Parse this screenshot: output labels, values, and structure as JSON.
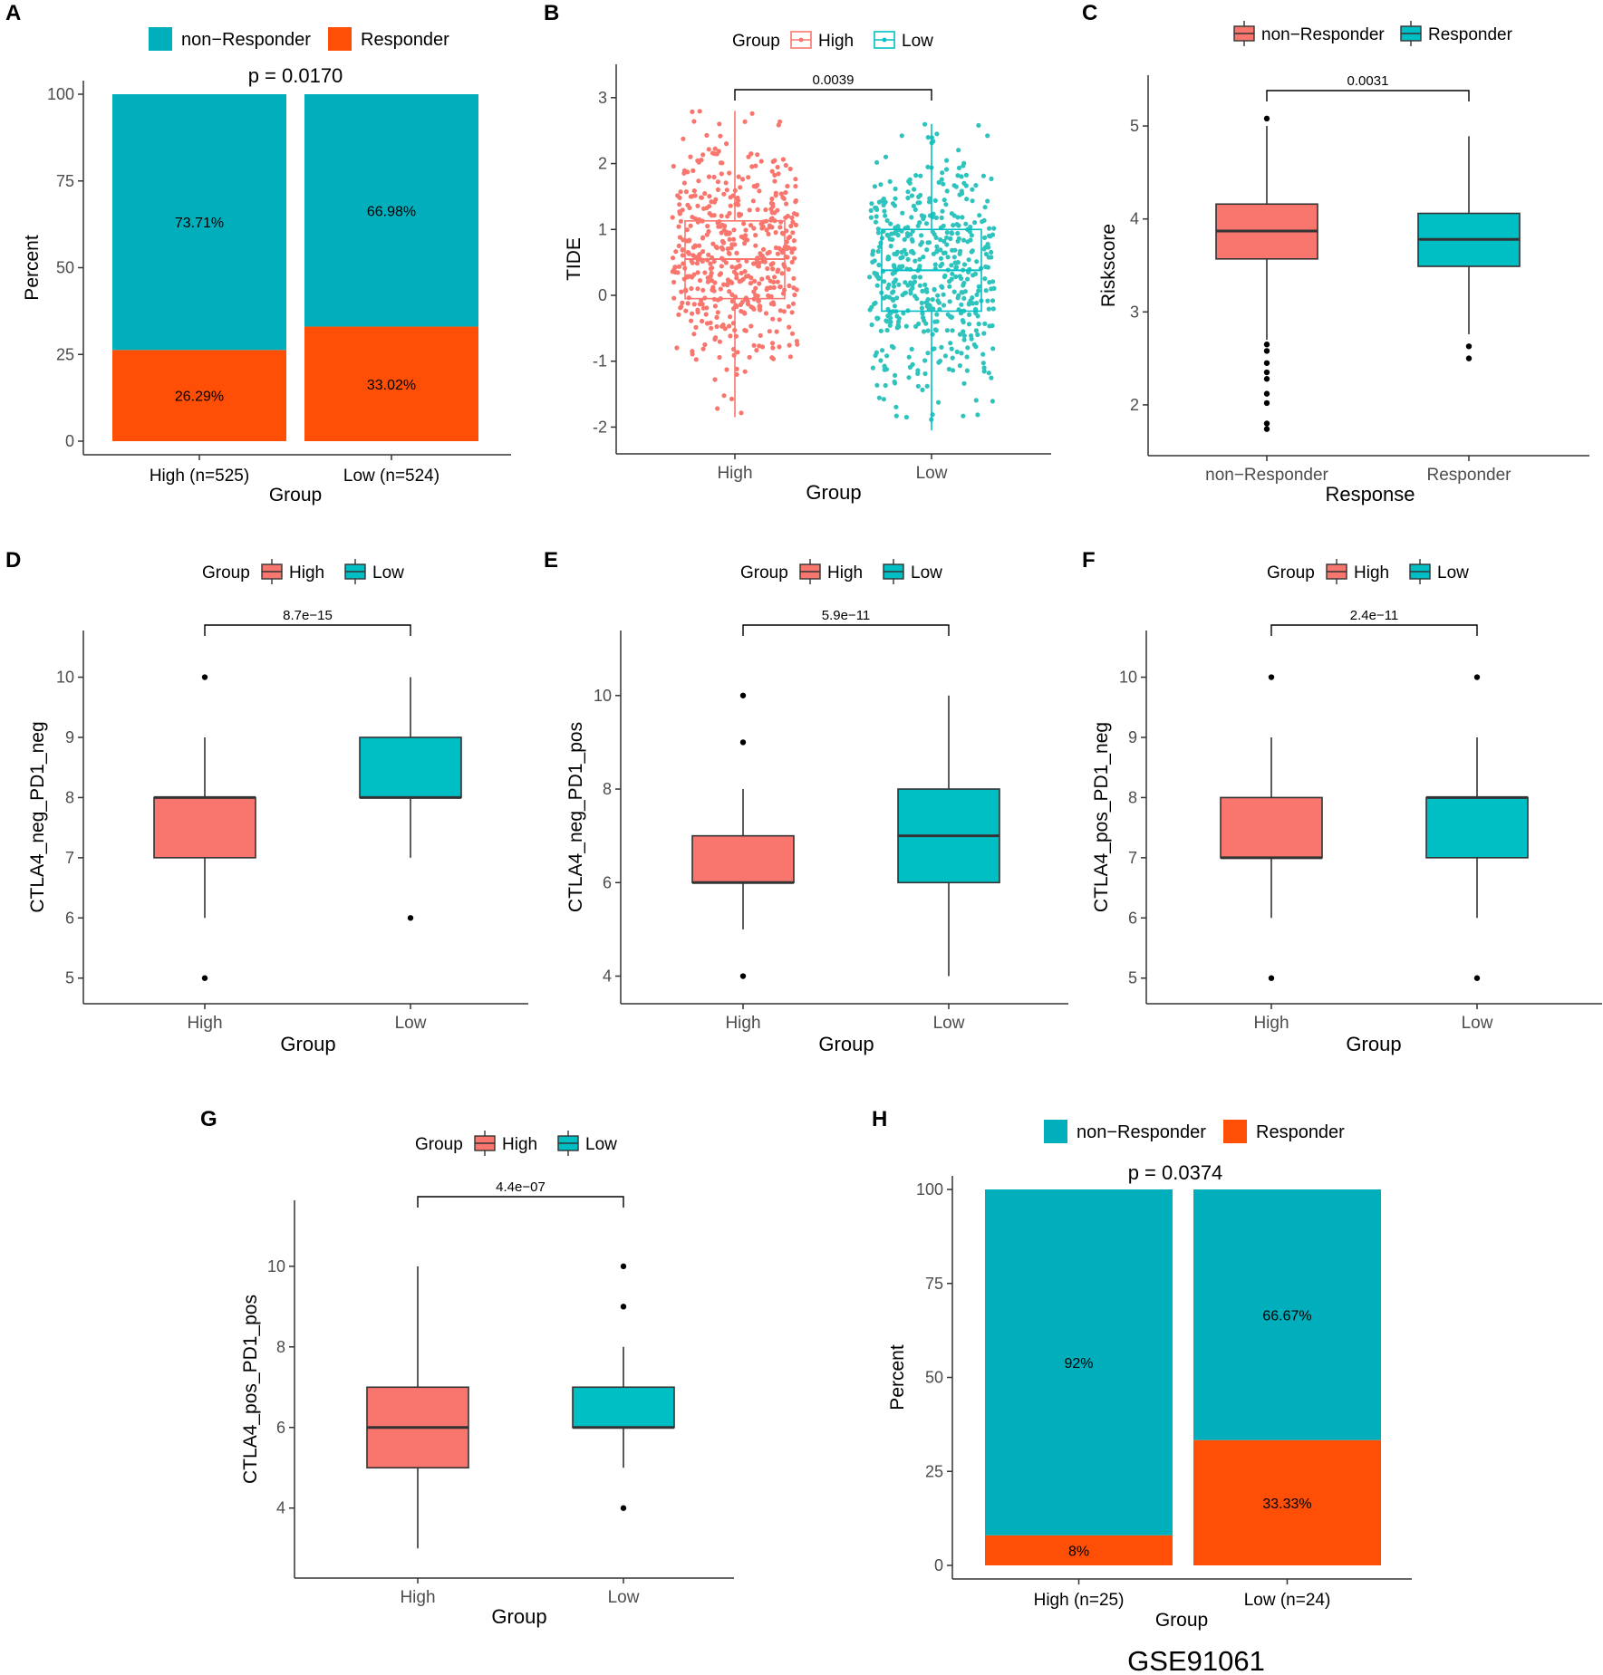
{
  "figure": {
    "footer": "GSE91061"
  },
  "chart_data": [
    {
      "panel": "A",
      "type": "bar",
      "stacked": true,
      "categories": [
        "High (n=525)",
        "Low (n=524)"
      ],
      "series": [
        {
          "name": "Responder",
          "values": [
            26.29,
            33.02
          ],
          "labels": [
            "26.29%",
            "33.02%"
          ]
        },
        {
          "name": "non−Responder",
          "values": [
            73.71,
            66.98
          ],
          "labels": [
            "73.71%",
            "66.98%"
          ]
        }
      ],
      "legend": [
        "non−Responder",
        "Responder"
      ],
      "title": "p = 0.0170",
      "xlabel": "Group",
      "ylabel": "Percent",
      "ylim": [
        0,
        100
      ],
      "yticks": [
        0,
        25,
        50,
        75,
        100
      ]
    },
    {
      "panel": "B",
      "type": "box",
      "jitter": true,
      "legend_title": "Group",
      "legend": [
        "High",
        "Low"
      ],
      "categories": [
        "High",
        "Low"
      ],
      "boxes": [
        {
          "name": "High",
          "min": -1.85,
          "q1": -0.05,
          "median": 0.55,
          "q3": 1.13,
          "max": 2.8,
          "outliers": []
        },
        {
          "name": "Low",
          "min": -2.05,
          "q1": -0.24,
          "median": 0.38,
          "q3": 1.0,
          "max": 2.6,
          "outliers": []
        }
      ],
      "pvalue": "0.0039",
      "xlabel": "Group",
      "ylabel": "TIDE",
      "ylim": [
        -2.2,
        3.3
      ],
      "yticks": [
        -2,
        -1,
        0,
        1,
        2,
        3
      ]
    },
    {
      "panel": "C",
      "type": "box",
      "legend": [
        "non−Responder",
        "Responder"
      ],
      "categories": [
        "non−Responder",
        "Responder"
      ],
      "boxes": [
        {
          "name": "non−Responder",
          "min": 2.7,
          "q1": 3.57,
          "median": 3.87,
          "q3": 4.16,
          "max": 5.0,
          "outliers": [
            5.08,
            2.65,
            2.58,
            2.45,
            2.35,
            2.28,
            2.12,
            2.02,
            1.8,
            1.74
          ]
        },
        {
          "name": "Responder",
          "min": 2.76,
          "q1": 3.49,
          "median": 3.78,
          "q3": 4.06,
          "max": 4.89,
          "outliers": [
            2.63,
            2.5
          ]
        }
      ],
      "pvalue": "0.0031",
      "xlabel": "Response",
      "ylabel": "Riskscore",
      "ylim": [
        1.6,
        5.4
      ],
      "yticks": [
        2,
        3,
        4,
        5
      ]
    },
    {
      "panel": "D",
      "type": "box",
      "legend_title": "Group",
      "legend": [
        "High",
        "Low"
      ],
      "categories": [
        "High",
        "Low"
      ],
      "boxes": [
        {
          "name": "High",
          "min": 6,
          "q1": 7,
          "median": 8,
          "q3": 8,
          "max": 9,
          "outliers": [
            10,
            5
          ]
        },
        {
          "name": "Low",
          "min": 7,
          "q1": 8,
          "median": 8,
          "q3": 9,
          "max": 10,
          "outliers": [
            6
          ]
        }
      ],
      "pvalue": "8.7e−15",
      "xlabel": "Group",
      "ylabel": "CTLA4_neg_PD1_neg",
      "ylim": [
        4.8,
        10.55
      ],
      "yticks": [
        5,
        6,
        7,
        8,
        9,
        10
      ]
    },
    {
      "panel": "E",
      "type": "box",
      "legend_title": "Group",
      "legend": [
        "High",
        "Low"
      ],
      "categories": [
        "High",
        "Low"
      ],
      "boxes": [
        {
          "name": "High",
          "min": 5,
          "q1": 6,
          "median": 6,
          "q3": 7,
          "max": 8,
          "outliers": [
            10,
            9,
            4
          ]
        },
        {
          "name": "Low",
          "min": 4,
          "q1": 6,
          "median": 7,
          "q3": 8,
          "max": 10,
          "outliers": []
        }
      ],
      "pvalue": "5.9e−11",
      "xlabel": "Group",
      "ylabel": "CTLA4_neg_PD1_pos",
      "ylim": [
        3.7,
        11.1
      ],
      "yticks": [
        4,
        6,
        8,
        10
      ]
    },
    {
      "panel": "F",
      "type": "box",
      "legend_title": "Group",
      "legend": [
        "High",
        "Low"
      ],
      "categories": [
        "High",
        "Low"
      ],
      "boxes": [
        {
          "name": "High",
          "min": 6,
          "q1": 7,
          "median": 7,
          "q3": 8,
          "max": 9,
          "outliers": [
            10,
            5
          ]
        },
        {
          "name": "Low",
          "min": 6,
          "q1": 7,
          "median": 8,
          "q3": 8,
          "max": 9,
          "outliers": [
            10,
            5
          ]
        }
      ],
      "pvalue": "2.4e−11",
      "xlabel": "Group",
      "ylabel": "CTLA4_pos_PD1_neg",
      "ylim": [
        4.8,
        10.55
      ],
      "yticks": [
        5,
        6,
        7,
        8,
        9,
        10
      ]
    },
    {
      "panel": "G",
      "type": "box",
      "legend_title": "Group",
      "legend": [
        "High",
        "Low"
      ],
      "categories": [
        "High",
        "Low"
      ],
      "boxes": [
        {
          "name": "High",
          "min": 3,
          "q1": 5,
          "median": 6,
          "q3": 7,
          "max": 10,
          "outliers": []
        },
        {
          "name": "Low",
          "min": 5,
          "q1": 6,
          "median": 6,
          "q3": 7,
          "max": 8,
          "outliers": [
            10,
            9,
            4
          ]
        }
      ],
      "pvalue": "4.4e−07",
      "xlabel": "Group",
      "ylabel": "CTLA4_pos_PD1_pos",
      "ylim": [
        2.6,
        11.3
      ],
      "yticks": [
        4,
        6,
        8,
        10
      ]
    },
    {
      "panel": "H",
      "type": "bar",
      "stacked": true,
      "categories": [
        "High (n=25)",
        "Low (n=24)"
      ],
      "series": [
        {
          "name": "Responder",
          "values": [
            8,
            33.33
          ],
          "labels": [
            "8%",
            "33.33%"
          ]
        },
        {
          "name": "non−Responder",
          "values": [
            92,
            66.67
          ],
          "labels": [
            "92%",
            "66.67%"
          ]
        }
      ],
      "legend": [
        "non−Responder",
        "Responder"
      ],
      "title": "p = 0.0374",
      "xlabel": "Group",
      "ylabel": "Percent",
      "ylim": [
        0,
        100
      ],
      "yticks": [
        0,
        25,
        50,
        75,
        100
      ]
    }
  ],
  "colors": {
    "bar_nonresp": "#00AEBC",
    "bar_resp": "#FF4E06",
    "box_high": "#F8766D",
    "box_low": "#00BFC4",
    "jitter_high": "#F8766D",
    "jitter_low": "#2EC4BD",
    "axis": "#333333",
    "tick_text": "#4D4D4D"
  }
}
